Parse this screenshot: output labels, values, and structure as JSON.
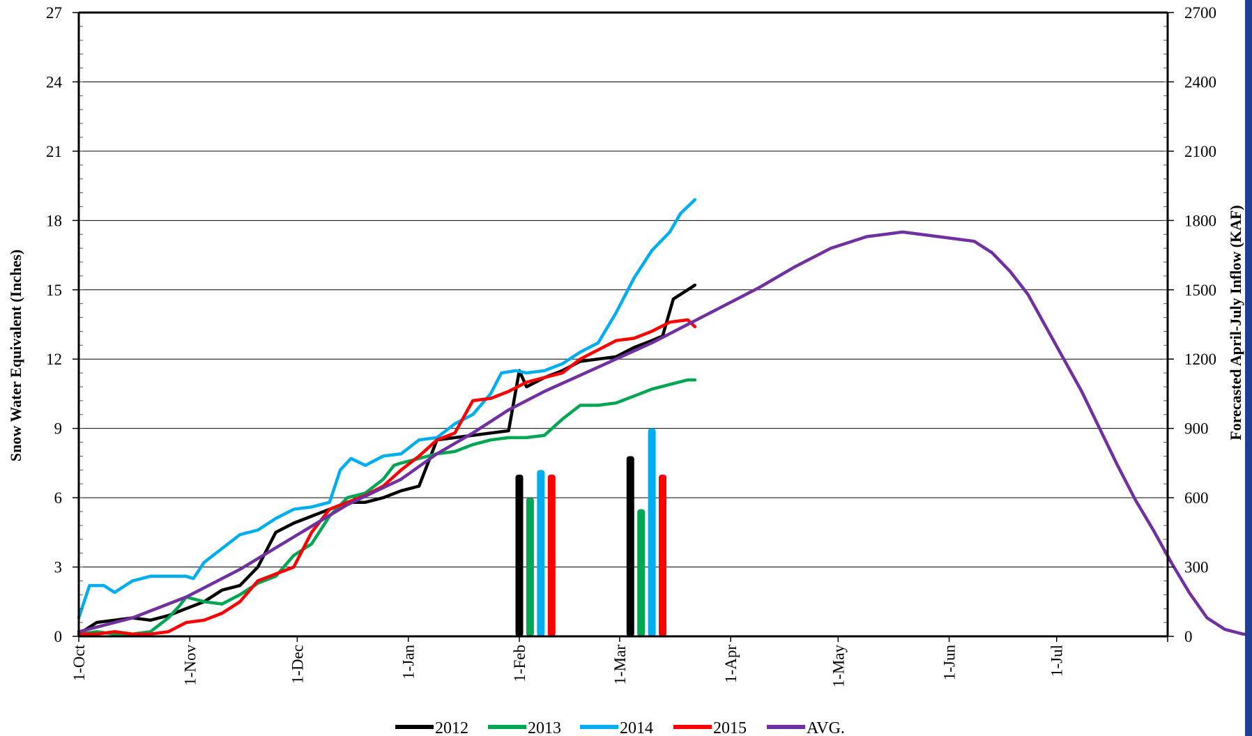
{
  "chart_data": {
    "type": "line",
    "xlabel": "",
    "ylabel": "Snow Water Equivalent (Inches)",
    "y2label": "Forecasted April-July Inflow (KAF)",
    "x_ticks": [
      "1-Oct",
      "1-Nov",
      "1-Dec",
      "1-Jan",
      "1-Feb",
      "1-Mar",
      "1-Apr",
      "1-May",
      "1-Jun",
      "1-Jul"
    ],
    "y_ticks": [
      "0",
      "3",
      "6",
      "9",
      "12",
      "15",
      "18",
      "21",
      "24",
      "27"
    ],
    "y2_ticks": [
      "0",
      "300",
      "600",
      "900",
      "1200",
      "1500",
      "1800",
      "2100",
      "2400",
      "2700"
    ],
    "ylim": [
      0,
      27
    ],
    "y2lim": [
      0,
      2700
    ],
    "xlim_days": [
      0,
      304
    ],
    "grid": true,
    "legend_position": "bottom",
    "colors": {
      "2012": "#000000",
      "2013": "#00a651",
      "2014": "#00aeef",
      "2015": "#ff0000",
      "AVG.": "#7030a0"
    },
    "series": [
      {
        "name": "2012",
        "color": "#000000",
        "points": [
          [
            0,
            0.1
          ],
          [
            5,
            0.6
          ],
          [
            10,
            0.7
          ],
          [
            15,
            0.8
          ],
          [
            20,
            0.7
          ],
          [
            25,
            0.9
          ],
          [
            30,
            1.2
          ],
          [
            35,
            1.5
          ],
          [
            40,
            2
          ],
          [
            45,
            2.2
          ],
          [
            50,
            3
          ],
          [
            55,
            4.5
          ],
          [
            60,
            4.9
          ],
          [
            65,
            5.2
          ],
          [
            70,
            5.5
          ],
          [
            75,
            5.8
          ],
          [
            80,
            5.8
          ],
          [
            85,
            6
          ],
          [
            90,
            6.3
          ],
          [
            95,
            6.5
          ],
          [
            100,
            8.5
          ],
          [
            105,
            8.6
          ],
          [
            110,
            8.7
          ],
          [
            115,
            8.8
          ],
          [
            120,
            8.9
          ],
          [
            123,
            11.5
          ],
          [
            125,
            10.8
          ],
          [
            130,
            11.2
          ],
          [
            135,
            11.5
          ],
          [
            140,
            11.9
          ],
          [
            145,
            12
          ],
          [
            150,
            12.1
          ],
          [
            155,
            12.5
          ],
          [
            160,
            12.8
          ],
          [
            163,
            13
          ],
          [
            166,
            14.6
          ],
          [
            170,
            15
          ],
          [
            172,
            15.2
          ]
        ]
      },
      {
        "name": "2013",
        "color": "#00a651",
        "points": [
          [
            0,
            0.1
          ],
          [
            5,
            0.2
          ],
          [
            10,
            0.1
          ],
          [
            15,
            0.1
          ],
          [
            20,
            0.2
          ],
          [
            25,
            0.8
          ],
          [
            28,
            1.3
          ],
          [
            30,
            1.7
          ],
          [
            35,
            1.5
          ],
          [
            40,
            1.4
          ],
          [
            45,
            1.8
          ],
          [
            50,
            2.3
          ],
          [
            55,
            2.6
          ],
          [
            60,
            3.5
          ],
          [
            65,
            4
          ],
          [
            70,
            5.2
          ],
          [
            75,
            6
          ],
          [
            80,
            6.2
          ],
          [
            85,
            6.8
          ],
          [
            88,
            7.4
          ],
          [
            90,
            7.5
          ],
          [
            95,
            7.7
          ],
          [
            100,
            7.9
          ],
          [
            105,
            8
          ],
          [
            110,
            8.3
          ],
          [
            115,
            8.5
          ],
          [
            120,
            8.6
          ],
          [
            125,
            8.6
          ],
          [
            130,
            8.7
          ],
          [
            135,
            9.4
          ],
          [
            140,
            10
          ],
          [
            145,
            10
          ],
          [
            150,
            10.1
          ],
          [
            155,
            10.4
          ],
          [
            160,
            10.7
          ],
          [
            165,
            10.9
          ],
          [
            170,
            11.1
          ],
          [
            172,
            11.1
          ]
        ]
      },
      {
        "name": "2014",
        "color": "#00aeef",
        "points": [
          [
            0,
            0.8
          ],
          [
            3,
            2.2
          ],
          [
            7,
            2.2
          ],
          [
            10,
            1.9
          ],
          [
            15,
            2.4
          ],
          [
            20,
            2.6
          ],
          [
            25,
            2.6
          ],
          [
            30,
            2.6
          ],
          [
            32,
            2.5
          ],
          [
            35,
            3.2
          ],
          [
            40,
            3.8
          ],
          [
            45,
            4.4
          ],
          [
            50,
            4.6
          ],
          [
            55,
            5.1
          ],
          [
            60,
            5.5
          ],
          [
            65,
            5.6
          ],
          [
            70,
            5.8
          ],
          [
            73,
            7.2
          ],
          [
            76,
            7.7
          ],
          [
            80,
            7.4
          ],
          [
            85,
            7.8
          ],
          [
            90,
            7.9
          ],
          [
            95,
            8.5
          ],
          [
            100,
            8.6
          ],
          [
            105,
            9.2
          ],
          [
            110,
            9.6
          ],
          [
            115,
            10.5
          ],
          [
            118,
            11.4
          ],
          [
            122,
            11.5
          ],
          [
            125,
            11.4
          ],
          [
            130,
            11.5
          ],
          [
            135,
            11.8
          ],
          [
            140,
            12.3
          ],
          [
            145,
            12.7
          ],
          [
            150,
            14
          ],
          [
            155,
            15.5
          ],
          [
            160,
            16.7
          ],
          [
            165,
            17.5
          ],
          [
            168,
            18.3
          ],
          [
            172,
            18.9
          ]
        ]
      },
      {
        "name": "2015",
        "color": "#ff0000",
        "points": [
          [
            0,
            0.1
          ],
          [
            5,
            0.1
          ],
          [
            10,
            0.2
          ],
          [
            15,
            0.1
          ],
          [
            20,
            0.1
          ],
          [
            25,
            0.2
          ],
          [
            30,
            0.6
          ],
          [
            35,
            0.7
          ],
          [
            40,
            1
          ],
          [
            45,
            1.5
          ],
          [
            50,
            2.4
          ],
          [
            55,
            2.7
          ],
          [
            60,
            3
          ],
          [
            65,
            4.5
          ],
          [
            70,
            5.5
          ],
          [
            75,
            5.8
          ],
          [
            80,
            6.1
          ],
          [
            85,
            6.5
          ],
          [
            90,
            7.2
          ],
          [
            95,
            7.8
          ],
          [
            100,
            8.5
          ],
          [
            105,
            8.8
          ],
          [
            110,
            10.2
          ],
          [
            115,
            10.3
          ],
          [
            120,
            10.6
          ],
          [
            125,
            11
          ],
          [
            130,
            11.2
          ],
          [
            135,
            11.4
          ],
          [
            140,
            12
          ],
          [
            145,
            12.4
          ],
          [
            150,
            12.8
          ],
          [
            155,
            12.9
          ],
          [
            160,
            13.2
          ],
          [
            165,
            13.6
          ],
          [
            170,
            13.7
          ],
          [
            172,
            13.4
          ]
        ]
      },
      {
        "name": "AVG.",
        "color": "#7030a0",
        "points": [
          [
            0,
            0.2
          ],
          [
            15,
            0.8
          ],
          [
            30,
            1.7
          ],
          [
            45,
            2.9
          ],
          [
            60,
            4.3
          ],
          [
            75,
            5.7
          ],
          [
            90,
            6.8
          ],
          [
            100,
            7.9
          ],
          [
            110,
            8.8
          ],
          [
            120,
            9.8
          ],
          [
            130,
            10.6
          ],
          [
            140,
            11.3
          ],
          [
            150,
            12
          ],
          [
            160,
            12.7
          ],
          [
            170,
            13.5
          ],
          [
            180,
            14.3
          ],
          [
            190,
            15.1
          ],
          [
            200,
            16
          ],
          [
            210,
            16.8
          ],
          [
            220,
            17.3
          ],
          [
            230,
            17.5
          ],
          [
            240,
            17.3
          ],
          [
            250,
            17.1
          ],
          [
            255,
            16.6
          ],
          [
            260,
            15.8
          ],
          [
            265,
            14.8
          ],
          [
            270,
            13.4
          ],
          [
            275,
            12
          ],
          [
            280,
            10.6
          ],
          [
            285,
            9
          ],
          [
            290,
            7.4
          ],
          [
            295,
            5.9
          ],
          [
            300,
            4.6
          ],
          [
            305,
            3.2
          ],
          [
            310,
            1.9
          ],
          [
            315,
            0.8
          ],
          [
            320,
            0.3
          ],
          [
            325,
            0.1
          ],
          [
            335,
            0
          ],
          [
            354,
            0
          ]
        ]
      }
    ],
    "bars": [
      {
        "series": "2012",
        "day": 123,
        "value": 700
      },
      {
        "series": "2013",
        "day": 126,
        "value": 600
      },
      {
        "series": "2014",
        "day": 129,
        "value": 720
      },
      {
        "series": "2015",
        "day": 132,
        "value": 700
      },
      {
        "series": "2012",
        "day": 154,
        "value": 780
      },
      {
        "series": "2013",
        "day": 157,
        "value": 550
      },
      {
        "series": "2014",
        "day": 160,
        "value": 900
      },
      {
        "series": "2015",
        "day": 163,
        "value": 700
      }
    ]
  },
  "legend": [
    {
      "label": "2012",
      "color": "#000000"
    },
    {
      "label": "2013",
      "color": "#00a651"
    },
    {
      "label": "2014",
      "color": "#00aeef"
    },
    {
      "label": "2015",
      "color": "#ff0000"
    },
    {
      "label": "AVG.",
      "color": "#7030a0"
    }
  ]
}
